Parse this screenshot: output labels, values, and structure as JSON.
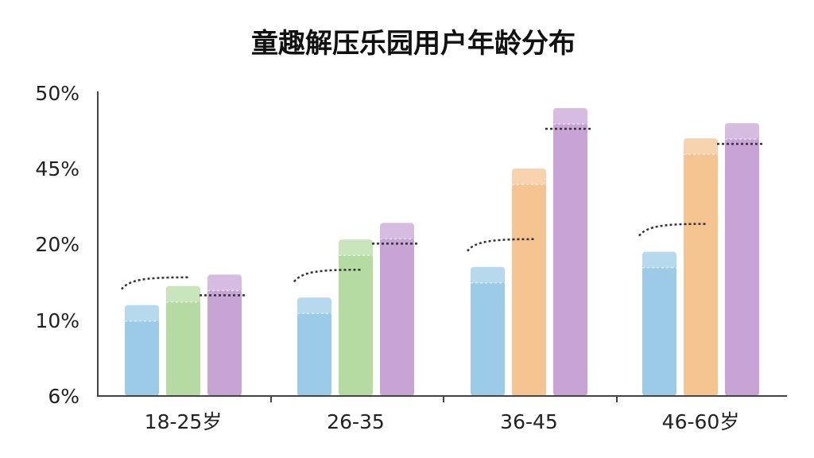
{
  "chart_data": {
    "type": "bar",
    "title": "童趣解压乐园用户年龄分布",
    "xlabel": "",
    "ylabel": "",
    "y_ticks": [
      "50%",
      "45%",
      "20%",
      "10%",
      "6%"
    ],
    "categories": [
      "18-25岁",
      "26-35",
      "36-45",
      "46-60岁"
    ],
    "series": [
      {
        "values": [
          12,
          13,
          17,
          19
        ]
      },
      {
        "values": [
          14.5,
          21.5,
          45,
          47
        ]
      },
      {
        "values": [
          16,
          27,
          49,
          48
        ]
      }
    ],
    "grid": false,
    "legend": "none"
  },
  "colors": {
    "category_bar_colors": [
      [
        "#9ccbe7",
        "#b5dba3",
        "#c7a3d6"
      ],
      [
        "#9ccbe7",
        "#b5dba3",
        "#c7a3d6"
      ],
      [
        "#9ccbe7",
        "#f4c491",
        "#c7a3d6"
      ],
      [
        "#9ccbe7",
        "#f4c491",
        "#c7a3d6"
      ]
    ],
    "axis": "#444444",
    "text": "#222222"
  }
}
